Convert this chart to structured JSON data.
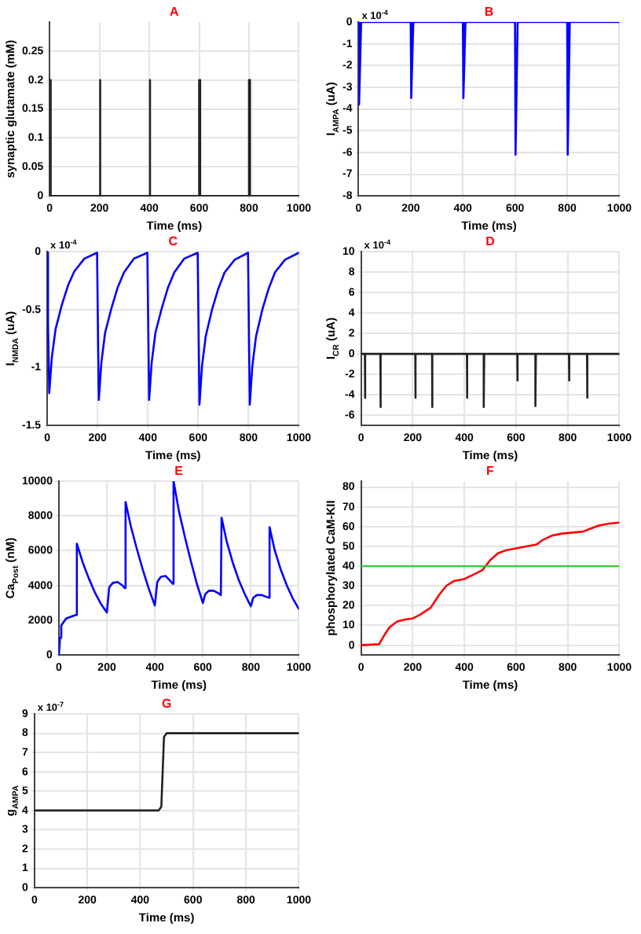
{
  "chart_data": [
    {
      "type": "line",
      "title": "A",
      "xlabel": "Time (ms)",
      "ylabel": "synaptic glutamate (mM)",
      "xlim": [
        0,
        1000
      ],
      "xticks": [
        0,
        200,
        400,
        600,
        800,
        1000
      ],
      "ylim": [
        0,
        0.3
      ],
      "yticks": [
        0,
        0.05,
        0.1,
        0.15,
        0.2,
        0.25
      ],
      "grid": true,
      "series": [
        {
          "color": "#222222",
          "x": [
            0,
            0,
            4,
            4,
            200,
            200,
            204,
            204,
            400,
            400,
            404,
            404,
            600,
            600,
            604,
            604,
            800,
            800,
            804,
            804,
            1000
          ],
          "values": [
            0,
            0.2,
            0.2,
            0,
            0,
            0.2,
            0.2,
            0,
            0,
            0.2,
            0.2,
            0,
            0,
            0.2,
            0.2,
            0,
            0,
            0.2,
            0.2,
            0,
            0
          ]
        }
      ]
    },
    {
      "type": "line",
      "title": "B",
      "xlabel": "Time (ms)",
      "ylabel": "I$_{AMPA}$ (uA)",
      "xlim": [
        0,
        1000
      ],
      "xticks": [
        0,
        200,
        400,
        600,
        800,
        1000
      ],
      "ylim": [
        -8,
        0
      ],
      "yticks": [
        -8,
        -7,
        -6,
        -5,
        -4,
        -3,
        -2,
        -1,
        0
      ],
      "grid": true,
      "annotations": [
        "x 10$^{-4}$"
      ],
      "series": [
        {
          "color": "#0000ff",
          "x": [
            0,
            2,
            10,
            200,
            202,
            210,
            400,
            402,
            410,
            600,
            602,
            610,
            800,
            802,
            810,
            1000
          ],
          "values": [
            0,
            -3.8,
            0,
            0,
            -3.5,
            0,
            0,
            -3.5,
            0,
            0,
            -6.1,
            0,
            0,
            -6.1,
            0,
            0
          ]
        }
      ]
    },
    {
      "type": "line",
      "title": "C",
      "xlabel": "Time (ms)",
      "ylabel": "I$_{NMDA}$ (uA)",
      "xlim": [
        0,
        1000
      ],
      "xticks": [
        0,
        200,
        400,
        600,
        800,
        1000
      ],
      "ylim": [
        -1.5,
        0
      ],
      "yticks": [
        -1.5,
        -1,
        -0.5,
        0
      ],
      "grid": true,
      "annotations": [
        "x 10$^{-4}$"
      ],
      "series": [
        {
          "color": "#0000ff",
          "x": [
            0,
            3,
            8,
            18,
            33,
            58,
            83,
            108,
            148,
            198,
            205,
            215,
            230,
            255,
            280,
            305,
            345,
            398,
            405,
            415,
            430,
            455,
            480,
            505,
            545,
            598,
            605,
            615,
            630,
            655,
            680,
            705,
            745,
            798,
            805,
            815,
            830,
            855,
            880,
            905,
            945,
            1000
          ],
          "values": [
            0,
            -0.6,
            -1.22,
            -0.92,
            -0.67,
            -0.46,
            -0.29,
            -0.17,
            -0.06,
            -0.01,
            -1.28,
            -0.96,
            -0.7,
            -0.49,
            -0.31,
            -0.18,
            -0.06,
            -0.01,
            -1.28,
            -0.96,
            -0.7,
            -0.49,
            -0.31,
            -0.18,
            -0.06,
            -0.01,
            -1.32,
            -0.99,
            -0.73,
            -0.5,
            -0.32,
            -0.18,
            -0.07,
            -0.01,
            -1.32,
            -0.99,
            -0.73,
            -0.5,
            -0.32,
            -0.18,
            -0.07,
            -0.01
          ]
        }
      ]
    },
    {
      "type": "line",
      "title": "D",
      "xlabel": "Time (ms)",
      "ylabel": "I$_{CR}$ (uA)",
      "xlim": [
        0,
        1000
      ],
      "xticks": [
        0,
        200,
        400,
        600,
        800,
        1000
      ],
      "ylim": [
        -7,
        10
      ],
      "yticks": [
        -6,
        -4,
        -2,
        0,
        2,
        4,
        6,
        8,
        10
      ],
      "grid": true,
      "annotations": [
        "x 10$^{-4}$"
      ],
      "series": [
        {
          "color": "#222222",
          "x": [
            0,
            15,
            15,
            17,
            75,
            75,
            77,
            210,
            210,
            212,
            275,
            275,
            277,
            410,
            410,
            412,
            475,
            475,
            477,
            605,
            605,
            607,
            675,
            675,
            677,
            805,
            805,
            807,
            875,
            875,
            877,
            1000
          ],
          "values": [
            0,
            0,
            -4.3,
            0,
            0,
            -5.2,
            0,
            0,
            -4.3,
            0,
            0,
            -5.2,
            0,
            0,
            -4.3,
            0,
            0,
            -5.2,
            0,
            0,
            -2.6,
            0,
            0,
            -5.1,
            0,
            0,
            -2.6,
            0,
            0,
            -4.3,
            0,
            0
          ]
        }
      ]
    },
    {
      "type": "line",
      "title": "E",
      "xlabel": "Time (ms)",
      "ylabel": "Ca$_{Post}$ (nM)",
      "xlim": [
        0,
        1000
      ],
      "xticks": [
        0,
        200,
        400,
        600,
        800,
        1000
      ],
      "ylim": [
        0,
        10000
      ],
      "yticks": [
        0,
        2000,
        4000,
        6000,
        8000,
        10000
      ],
      "grid": true,
      "series": [
        {
          "color": "#0000ff",
          "x": [
            0,
            5,
            10,
            30,
            70,
            75,
            100,
            125,
            150,
            175,
            200,
            210,
            225,
            245,
            265,
            275,
            278,
            300,
            325,
            350,
            375,
            400,
            410,
            425,
            445,
            465,
            475,
            478,
            500,
            525,
            550,
            575,
            600,
            610,
            625,
            645,
            665,
            675,
            678,
            700,
            725,
            750,
            775,
            800,
            810,
            825,
            845,
            865,
            875,
            878,
            900,
            925,
            950,
            975,
            1000
          ],
          "values": [
            0,
            1000,
            1700,
            2100,
            2300,
            6400,
            5300,
            4400,
            3600,
            2950,
            2450,
            3900,
            4150,
            4200,
            4000,
            3850,
            8800,
            7400,
            6100,
            4900,
            3800,
            2850,
            4200,
            4500,
            4550,
            4250,
            4100,
            10000,
            8300,
            6800,
            5400,
            4100,
            3000,
            3500,
            3700,
            3700,
            3550,
            3450,
            7900,
            6500,
            5300,
            4300,
            3500,
            2800,
            3300,
            3450,
            3450,
            3350,
            3300,
            7350,
            6000,
            4900,
            4000,
            3250,
            2650
          ]
        }
      ]
    },
    {
      "type": "line",
      "title": "F",
      "xlabel": "Time (ms)",
      "ylabel": "phosphorylated CaM-KII",
      "xlim": [
        0,
        1000
      ],
      "xticks": [
        0,
        200,
        400,
        600,
        800,
        1000
      ],
      "ylim": [
        -5,
        83
      ],
      "yticks": [
        0,
        10,
        20,
        30,
        40,
        50,
        60,
        70,
        80
      ],
      "grid": true,
      "ref_lines": [
        {
          "axis": "y",
          "value": 40,
          "color": "#33cc33"
        }
      ],
      "series": [
        {
          "color": "#ff0000",
          "x": [
            0,
            70,
            90,
            110,
            140,
            170,
            200,
            230,
            270,
            300,
            330,
            360,
            400,
            440,
            470,
            500,
            530,
            560,
            600,
            640,
            680,
            700,
            740,
            780,
            820,
            860,
            880,
            920,
            960,
            1000
          ],
          "values": [
            0,
            0.5,
            5,
            9,
            12,
            13,
            13.5,
            15.5,
            19,
            25,
            30,
            32.5,
            33.5,
            36,
            38,
            43,
            46.5,
            48,
            49,
            50,
            51,
            53,
            55.5,
            56.5,
            57,
            57.5,
            58.5,
            60.5,
            61.5,
            62
          ]
        }
      ]
    },
    {
      "type": "line",
      "title": "G",
      "xlabel": "Time (ms)",
      "ylabel": "g$_{AMPA}$",
      "xlim": [
        0,
        1000
      ],
      "xticks": [
        0,
        200,
        400,
        600,
        800,
        1000
      ],
      "ylim": [
        0,
        9
      ],
      "yticks": [
        0,
        1,
        2,
        3,
        4,
        5,
        6,
        7,
        8,
        9
      ],
      "grid": true,
      "annotations": [
        "x 10$^{-7}$"
      ],
      "series": [
        {
          "color": "#222222",
          "x": [
            0,
            470,
            480,
            490,
            500,
            1000
          ],
          "values": [
            4,
            4,
            4.2,
            7.8,
            8,
            8
          ]
        }
      ]
    }
  ]
}
